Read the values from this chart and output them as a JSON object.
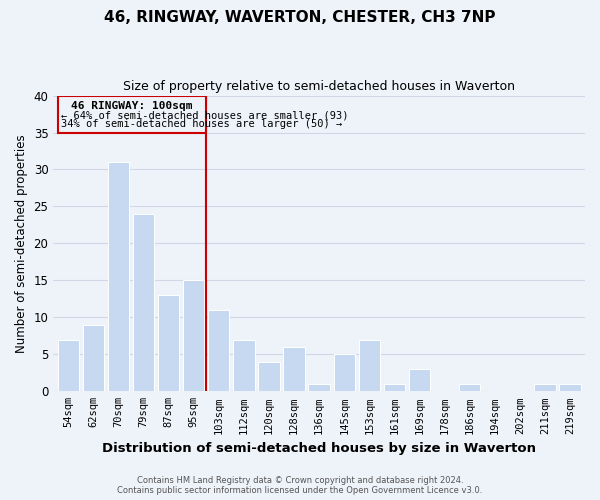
{
  "title": "46, RINGWAY, WAVERTON, CHESTER, CH3 7NP",
  "subtitle": "Size of property relative to semi-detached houses in Waverton",
  "xlabel": "Distribution of semi-detached houses by size in Waverton",
  "ylabel": "Number of semi-detached properties",
  "bar_labels": [
    "54sqm",
    "62sqm",
    "70sqm",
    "79sqm",
    "87sqm",
    "95sqm",
    "103sqm",
    "112sqm",
    "120sqm",
    "128sqm",
    "136sqm",
    "145sqm",
    "153sqm",
    "161sqm",
    "169sqm",
    "178sqm",
    "186sqm",
    "194sqm",
    "202sqm",
    "211sqm",
    "219sqm"
  ],
  "bar_values": [
    7,
    9,
    31,
    24,
    13,
    15,
    11,
    7,
    4,
    6,
    1,
    5,
    7,
    1,
    3,
    0,
    1,
    0,
    0,
    1,
    1
  ],
  "bar_color": "#c6d9f0",
  "subject_bar_index": 6,
  "annotation_title": "46 RINGWAY: 100sqm",
  "annotation_line1": "← 64% of semi-detached houses are smaller (93)",
  "annotation_line2": "34% of semi-detached houses are larger (50) →",
  "subject_vline_color": "#cc0000",
  "annotation_box_color": "#cc0000",
  "ylim": [
    0,
    40
  ],
  "yticks": [
    0,
    5,
    10,
    15,
    20,
    25,
    30,
    35,
    40
  ],
  "grid_color": "#d0d8e8",
  "background_color": "#eef2f9",
  "footer_line1": "Contains HM Land Registry data © Crown copyright and database right 2024.",
  "footer_line2": "Contains public sector information licensed under the Open Government Licence v3.0."
}
